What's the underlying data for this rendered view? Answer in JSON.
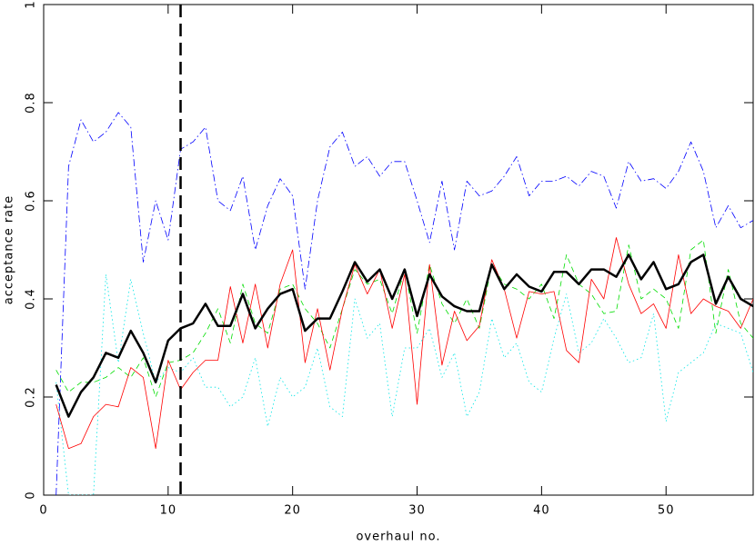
{
  "chart_data": {
    "type": "line",
    "xlabel": "overhaul no.",
    "ylabel": "acceptance rate",
    "x": [
      1,
      2,
      3,
      4,
      5,
      6,
      7,
      8,
      9,
      10,
      11,
      12,
      13,
      14,
      15,
      16,
      17,
      18,
      19,
      20,
      21,
      22,
      23,
      24,
      25,
      26,
      27,
      28,
      29,
      30,
      31,
      32,
      33,
      34,
      35,
      36,
      37,
      38,
      39,
      40,
      41,
      42,
      43,
      44,
      45,
      46,
      47,
      48,
      49,
      50,
      51,
      52,
      53,
      54,
      55,
      56,
      57
    ],
    "xlim": [
      0,
      57
    ],
    "ylim": [
      0,
      1
    ],
    "xticks": [
      0,
      10,
      20,
      30,
      40,
      50
    ],
    "yticks": [
      0,
      0.2,
      0.4,
      0.6,
      0.8,
      1
    ],
    "vlines": [
      11
    ],
    "series": [
      {
        "color": "#0000ff",
        "style": "dashdot",
        "width": 0.8,
        "values": [
          0.0,
          0.67,
          0.765,
          0.72,
          0.74,
          0.78,
          0.75,
          0.475,
          0.6,
          0.52,
          0.705,
          0.72,
          0.75,
          0.6,
          0.58,
          0.65,
          0.5,
          0.59,
          0.645,
          0.61,
          0.42,
          0.6,
          0.71,
          0.74,
          0.67,
          0.69,
          0.65,
          0.68,
          0.68,
          0.6,
          0.515,
          0.64,
          0.5,
          0.64,
          0.61,
          0.62,
          0.65,
          0.69,
          0.61,
          0.64,
          0.64,
          0.65,
          0.63,
          0.66,
          0.65,
          0.585,
          0.68,
          0.64,
          0.645,
          0.625,
          0.66,
          0.72,
          0.66,
          0.545,
          0.59,
          0.545,
          0.56
        ]
      },
      {
        "color": "#00e5e5",
        "style": "dotted",
        "width": 0.8,
        "values": [
          0.23,
          0.0,
          0.0,
          0.0,
          0.45,
          0.27,
          0.44,
          0.33,
          0.23,
          0.26,
          0.25,
          0.28,
          0.22,
          0.22,
          0.18,
          0.2,
          0.28,
          0.14,
          0.24,
          0.2,
          0.22,
          0.3,
          0.18,
          0.16,
          0.4,
          0.32,
          0.35,
          0.16,
          0.3,
          0.3,
          0.34,
          0.24,
          0.29,
          0.16,
          0.21,
          0.36,
          0.28,
          0.31,
          0.23,
          0.21,
          0.32,
          0.41,
          0.29,
          0.31,
          0.36,
          0.32,
          0.27,
          0.28,
          0.37,
          0.15,
          0.25,
          0.27,
          0.29,
          0.35,
          0.34,
          0.33,
          0.25
        ]
      },
      {
        "color": "#00dd00",
        "style": "dashed",
        "width": 0.8,
        "values": [
          0.255,
          0.21,
          0.23,
          0.23,
          0.24,
          0.26,
          0.24,
          0.28,
          0.2,
          0.27,
          0.275,
          0.29,
          0.33,
          0.38,
          0.31,
          0.43,
          0.35,
          0.33,
          0.42,
          0.43,
          0.38,
          0.35,
          0.3,
          0.38,
          0.46,
          0.43,
          0.44,
          0.37,
          0.46,
          0.33,
          0.47,
          0.39,
          0.35,
          0.4,
          0.34,
          0.47,
          0.43,
          0.42,
          0.4,
          0.43,
          0.36,
          0.49,
          0.43,
          0.41,
          0.37,
          0.375,
          0.51,
          0.4,
          0.42,
          0.4,
          0.34,
          0.5,
          0.52,
          0.33,
          0.46,
          0.35,
          0.32
        ]
      },
      {
        "color": "#ff0000",
        "style": "solid",
        "width": 0.8,
        "values": [
          0.185,
          0.095,
          0.105,
          0.16,
          0.185,
          0.18,
          0.26,
          0.24,
          0.095,
          0.275,
          0.215,
          0.25,
          0.275,
          0.275,
          0.425,
          0.31,
          0.43,
          0.3,
          0.43,
          0.5,
          0.27,
          0.38,
          0.255,
          0.38,
          0.47,
          0.41,
          0.46,
          0.34,
          0.45,
          0.185,
          0.47,
          0.265,
          0.375,
          0.315,
          0.345,
          0.48,
          0.42,
          0.32,
          0.415,
          0.41,
          0.415,
          0.295,
          0.27,
          0.44,
          0.4,
          0.525,
          0.43,
          0.37,
          0.39,
          0.34,
          0.49,
          0.37,
          0.4,
          0.385,
          0.375,
          0.34,
          0.4
        ]
      },
      {
        "color": "#000000",
        "style": "solid",
        "width": 2.5,
        "values": [
          0.225,
          0.16,
          0.21,
          0.24,
          0.29,
          0.28,
          0.335,
          0.29,
          0.23,
          0.315,
          0.34,
          0.35,
          0.39,
          0.345,
          0.345,
          0.41,
          0.34,
          0.38,
          0.41,
          0.42,
          0.335,
          0.36,
          0.36,
          0.415,
          0.475,
          0.435,
          0.46,
          0.4,
          0.46,
          0.365,
          0.45,
          0.405,
          0.385,
          0.375,
          0.375,
          0.47,
          0.42,
          0.45,
          0.425,
          0.415,
          0.455,
          0.455,
          0.43,
          0.46,
          0.46,
          0.445,
          0.49,
          0.44,
          0.475,
          0.42,
          0.43,
          0.475,
          0.49,
          0.39,
          0.445,
          0.4,
          0.385
        ]
      }
    ]
  }
}
